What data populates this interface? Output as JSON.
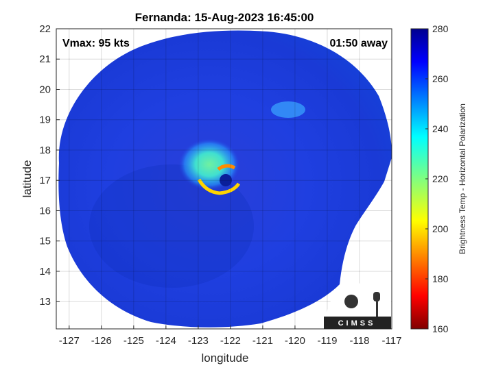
{
  "title": "Fernanda: 15-Aug-2023 16:45:00",
  "vmax_label": "Vmax: 95 kts",
  "time_away": "01:50 away",
  "map": {
    "xlabel": "longitude",
    "ylabel": "latitude",
    "x_ticks": [
      "-127",
      "-126",
      "-125",
      "-124",
      "-123",
      "-122",
      "-121",
      "-120",
      "-119",
      "-118",
      "-117"
    ],
    "y_ticks": [
      "13",
      "14",
      "15",
      "16",
      "17",
      "18",
      "19",
      "20",
      "21",
      "22"
    ],
    "xlim": [
      -127.4,
      -117
    ],
    "ylim": [
      12.1,
      22
    ],
    "grid": true,
    "storm_center": {
      "lon": -122.0,
      "lat": 17.0
    }
  },
  "colorbar": {
    "label": "Brightness Temp - Horizontal Polarization",
    "ticks": [
      "160",
      "180",
      "200",
      "220",
      "240",
      "260",
      "280"
    ],
    "range": [
      160,
      280
    ],
    "colormap": "jet"
  },
  "logo": {
    "text": "CIMSS"
  }
}
